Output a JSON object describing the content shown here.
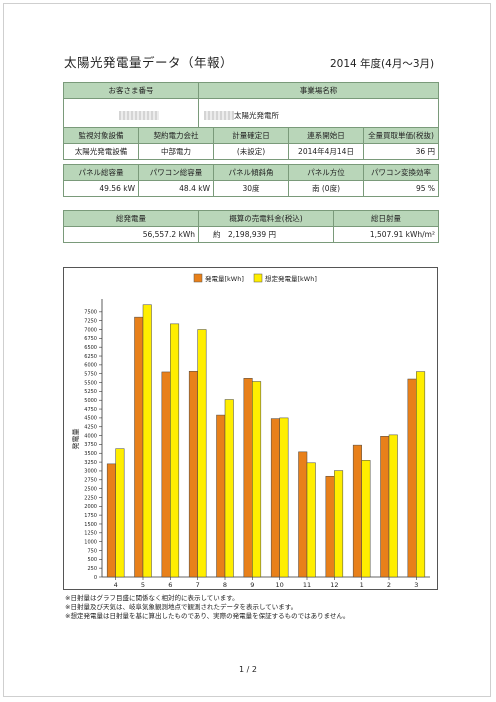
{
  "title": "太陽光発電量データ（年報）",
  "period": "2014 年度(4月～3月)",
  "row1": {
    "customer_label": "お客さま番号",
    "site_label": "事業場名称",
    "site_value": "太陽光発電所"
  },
  "row2": {
    "headers": [
      "監視対象設備",
      "契約電力会社",
      "計量確定日",
      "連系開始日",
      "全量買取単価(税抜)"
    ],
    "values": [
      "太陽光発電設備",
      "中部電力",
      "(未設定)",
      "2014年4月14日",
      "36 円"
    ]
  },
  "row3": {
    "headers": [
      "パネル総容量",
      "パワコン総容量",
      "パネル傾斜角",
      "パネル方位",
      "パワコン変換効率"
    ],
    "values": [
      "49.56 kW",
      "48.4 kW",
      "30度",
      "南 (0度)",
      "95 %"
    ]
  },
  "row4": {
    "headers": [
      "総発電量",
      "概算の売電料金(税込)",
      "総日射量"
    ],
    "values": [
      "56,557.2 kWh",
      "約　2,198,939 円",
      "1,507.91 kWh/m²"
    ]
  },
  "chart_data": {
    "type": "bar",
    "categories": [
      "4",
      "5",
      "6",
      "7",
      "8",
      "9",
      "10",
      "11",
      "12",
      "1",
      "2",
      "3"
    ],
    "series": [
      {
        "name": "発電量[kWh]",
        "color": "#e8801a",
        "values": [
          3200,
          7350,
          5800,
          5820,
          4580,
          5620,
          4480,
          3540,
          2850,
          3730,
          3980,
          5600
        ]
      },
      {
        "name": "想定発電量[kWh]",
        "color": "#ffee00",
        "values": [
          3630,
          7700,
          7160,
          7000,
          5020,
          5530,
          4500,
          3230,
          3010,
          3300,
          4020,
          5810
        ]
      }
    ],
    "ylabel": "発電量",
    "ylim": [
      0,
      7750
    ],
    "yticks": [
      0,
      250,
      500,
      750,
      1000,
      1250,
      1500,
      1750,
      2000,
      2250,
      2500,
      2750,
      3000,
      3250,
      3500,
      3750,
      4000,
      4250,
      4500,
      4750,
      5000,
      5250,
      5500,
      5750,
      6000,
      6250,
      6500,
      6750,
      7000,
      7250,
      7500
    ],
    "legend_position": "top",
    "grid": false
  },
  "notes": [
    "※日射量はグラフ目盛に関係なく相対的に表示しています。",
    "※日射量及び天気は、岐阜気象観測地点で観測されたデータを表示しています。",
    "※想定発電量は日射量を基に算出したものであり、実際の発電量を保証するものではありません。"
  ],
  "page_number": "1 / 2"
}
